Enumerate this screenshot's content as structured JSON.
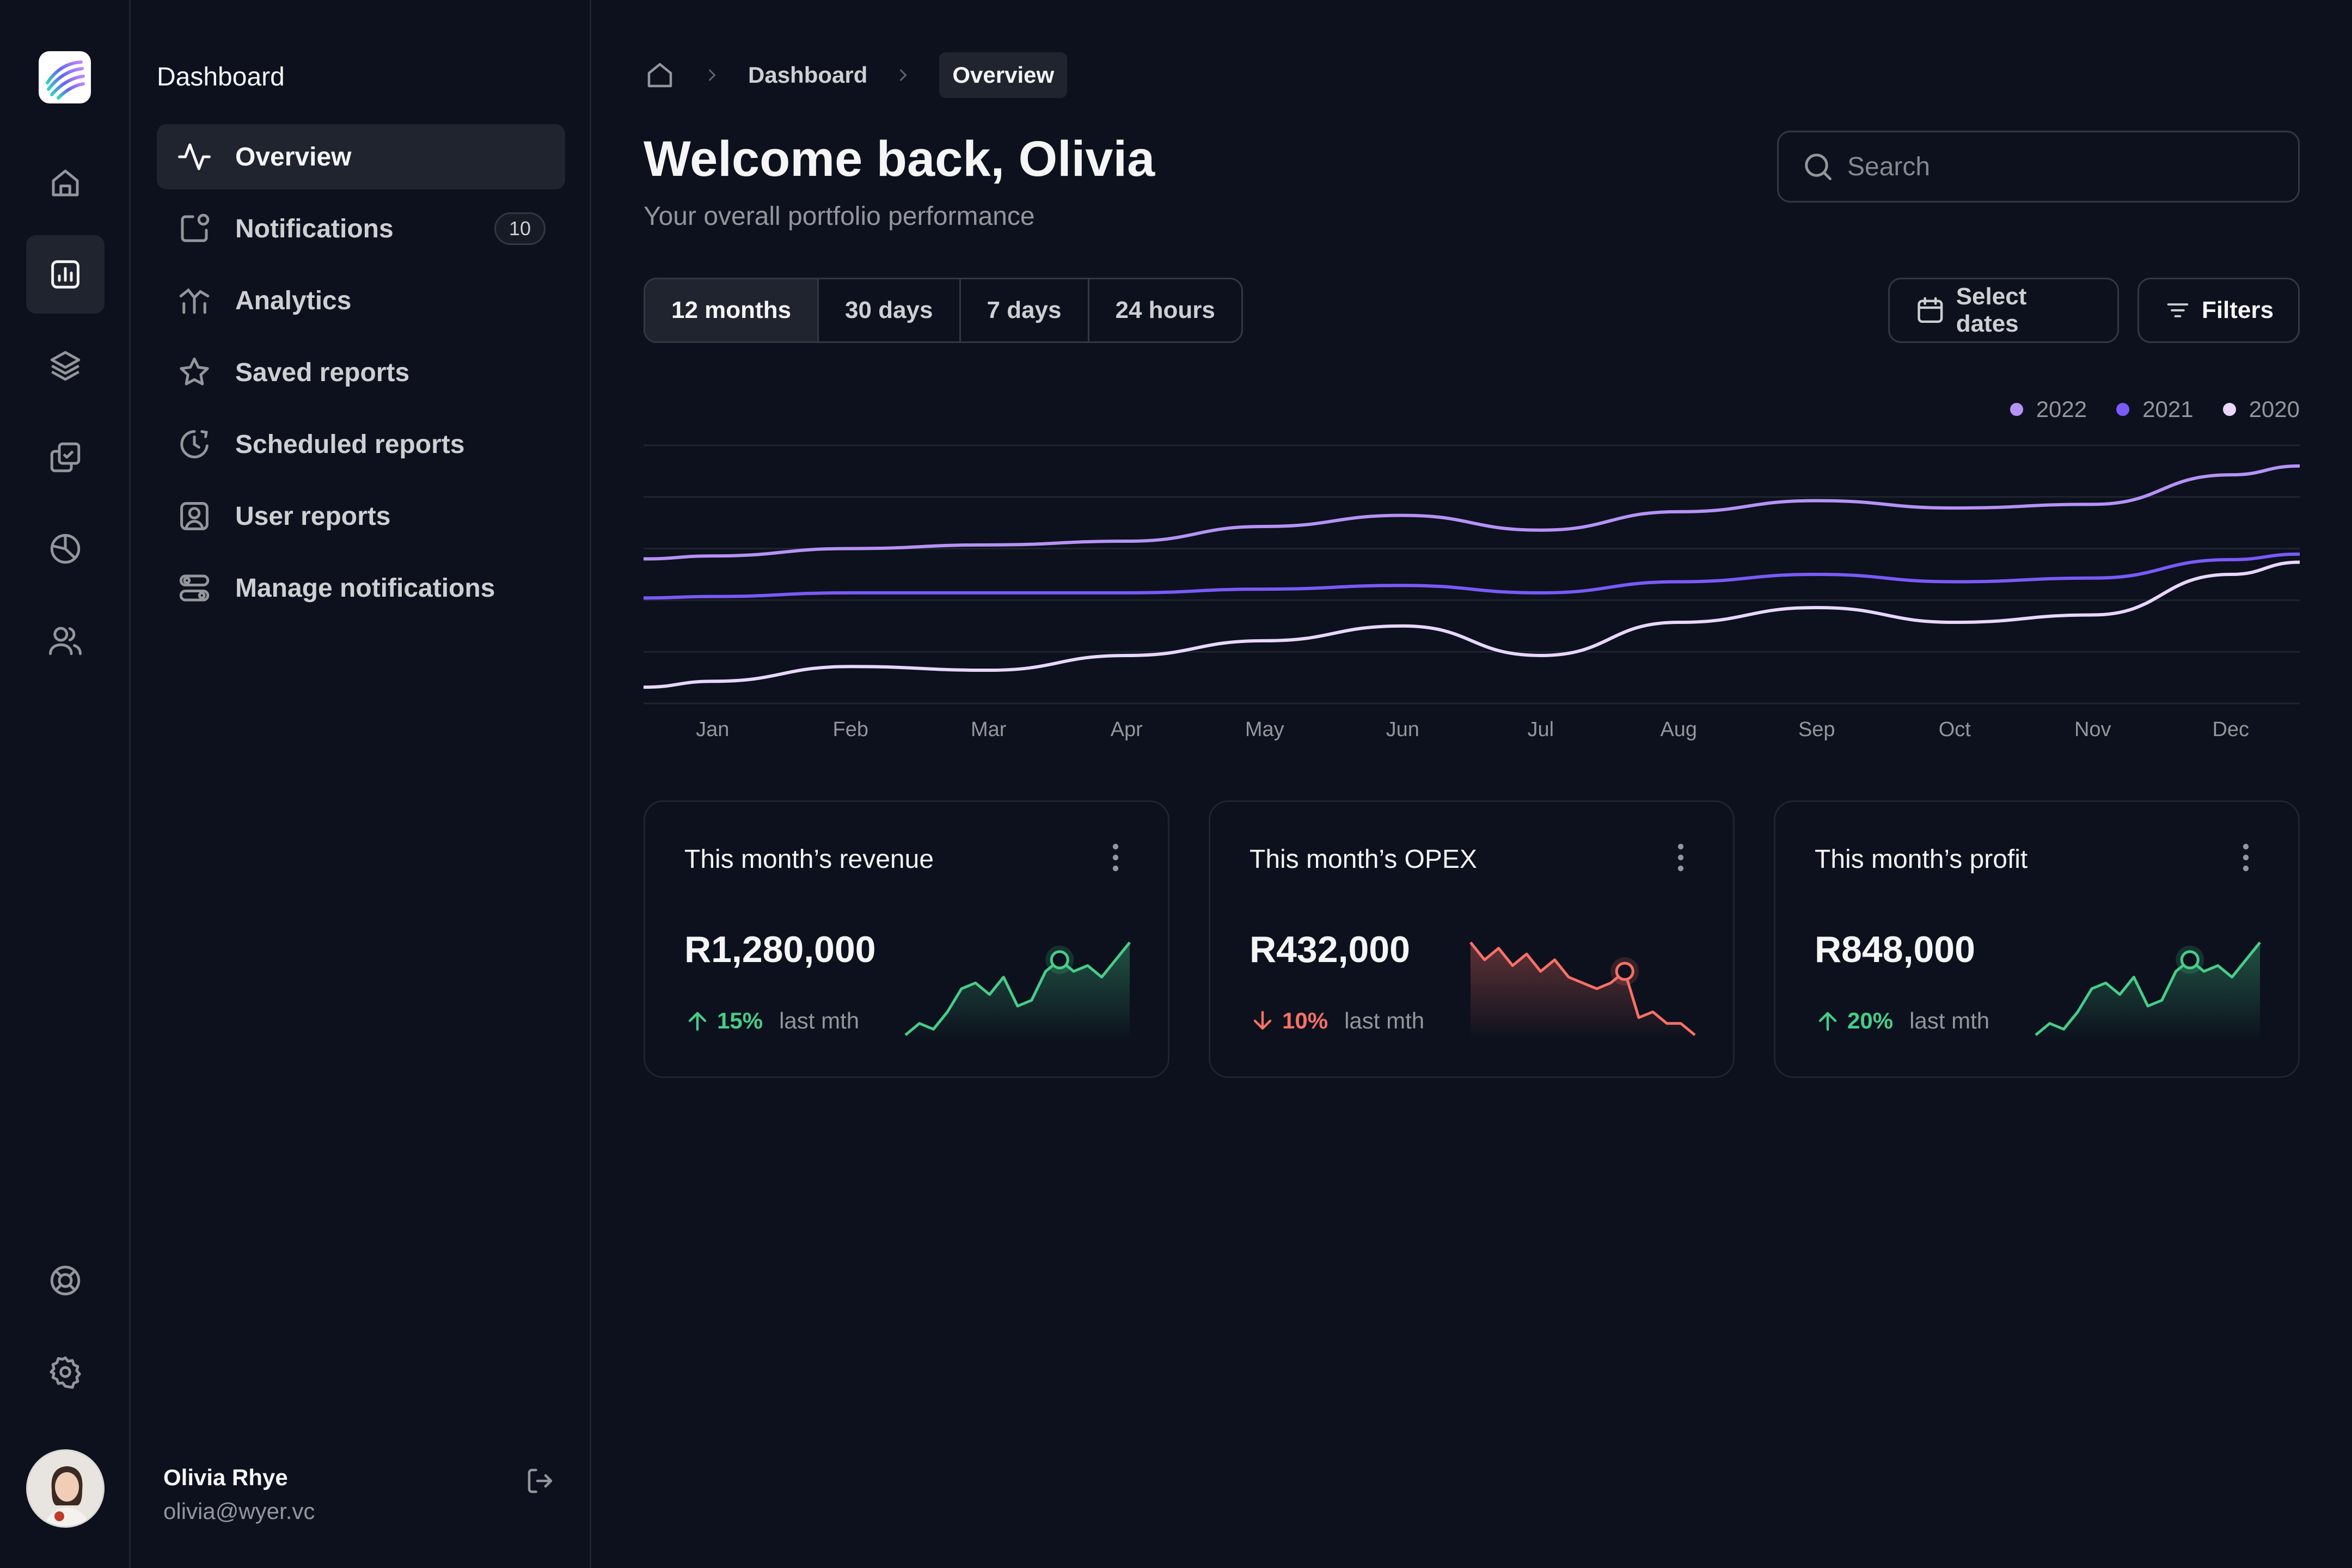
{
  "colors": {
    "background": "#0c111d",
    "surface": "#1f242f",
    "series_2022": "#b692f6",
    "series_2021": "#7a5af8",
    "series_2020": "#e9d7fe",
    "positive": "#47cd89",
    "negative": "#f97066"
  },
  "rail": {
    "icons": [
      "logo-icon",
      "home-icon",
      "bar-chart-icon",
      "layers-icon",
      "check-square-icon",
      "pie-chart-icon",
      "users-icon",
      "life-buoy-icon",
      "settings-icon"
    ]
  },
  "sidebar": {
    "title": "Dashboard",
    "items": [
      {
        "label": "Overview",
        "icon": "activity-icon"
      },
      {
        "label": "Notifications",
        "icon": "notification-box-icon",
        "badge": "10"
      },
      {
        "label": "Analytics",
        "icon": "analytics-icon"
      },
      {
        "label": "Saved reports",
        "icon": "star-icon"
      },
      {
        "label": "Scheduled reports",
        "icon": "clock-icon"
      },
      {
        "label": "User reports",
        "icon": "user-square-icon"
      },
      {
        "label": "Manage notifications",
        "icon": "toggle-icon"
      }
    ],
    "user": {
      "name": "Olivia Rhye",
      "email": "olivia@wyer.vc"
    }
  },
  "breadcrumb": {
    "items": [
      "Dashboard",
      "Overview"
    ]
  },
  "header": {
    "title": "Welcome back, Olivia",
    "subtitle": "Your overall portfolio performance"
  },
  "search": {
    "placeholder": "Search",
    "value": ""
  },
  "time_range": {
    "options": [
      "12 months",
      "30 days",
      "7 days",
      "24 hours"
    ],
    "selected": "12 months"
  },
  "toolbar": {
    "select_dates_label": "Select dates",
    "filters_label": "Filters"
  },
  "chart_data": {
    "type": "line",
    "categories": [
      "Jan",
      "Feb",
      "Mar",
      "Apr",
      "May",
      "Jun",
      "Jul",
      "Aug",
      "Sep",
      "Oct",
      "Nov",
      "Dec"
    ],
    "series": [
      {
        "name": "2022",
        "color": "#b692f6",
        "values": [
          4.0,
          4.2,
          4.3,
          4.4,
          4.8,
          5.1,
          4.7,
          5.2,
          5.5,
          5.3,
          5.4,
          6.2
        ]
      },
      {
        "name": "2021",
        "color": "#7a5af8",
        "values": [
          2.9,
          3.0,
          3.0,
          3.0,
          3.1,
          3.2,
          3.0,
          3.3,
          3.5,
          3.3,
          3.4,
          3.9
        ]
      },
      {
        "name": "2020",
        "color": "#e9d7fe",
        "values": [
          0.6,
          1.0,
          0.9,
          1.3,
          1.7,
          2.1,
          1.3,
          2.2,
          2.6,
          2.2,
          2.4,
          3.5
        ]
      }
    ],
    "ylim": [
      0,
      7
    ],
    "grid": true,
    "legend": "top-right",
    "title": "",
    "xlabel": "",
    "ylabel": ""
  },
  "metrics": [
    {
      "title": "This month’s revenue",
      "value": "R1,280,000",
      "change": "15%",
      "direction": "up",
      "suffix": "last mth",
      "color": "#47cd89",
      "spark": [
        2,
        3,
        2.5,
        4,
        6,
        6.5,
        5.5,
        7,
        4.5,
        5,
        7.5,
        8.5,
        7.5,
        8,
        7,
        8.5,
        10
      ],
      "marker_index": 11
    },
    {
      "title": "This month’s OPEX",
      "value": "R432,000",
      "change": "10%",
      "direction": "down",
      "suffix": "last mth",
      "color": "#f97066",
      "spark": [
        9.5,
        8,
        9,
        7.5,
        8.5,
        7,
        8,
        6.5,
        6,
        5.5,
        6,
        7,
        3,
        3.5,
        2.5,
        2.5,
        1.5
      ],
      "marker_index": 11
    },
    {
      "title": "This month’s profit",
      "value": "R848,000",
      "change": "20%",
      "direction": "up",
      "suffix": "last mth",
      "color": "#47cd89",
      "spark": [
        2,
        3,
        2.5,
        4,
        6,
        6.5,
        5.5,
        7,
        4.5,
        5,
        7.5,
        8.5,
        7.5,
        8,
        7,
        8.5,
        10
      ],
      "marker_index": 11
    }
  ]
}
